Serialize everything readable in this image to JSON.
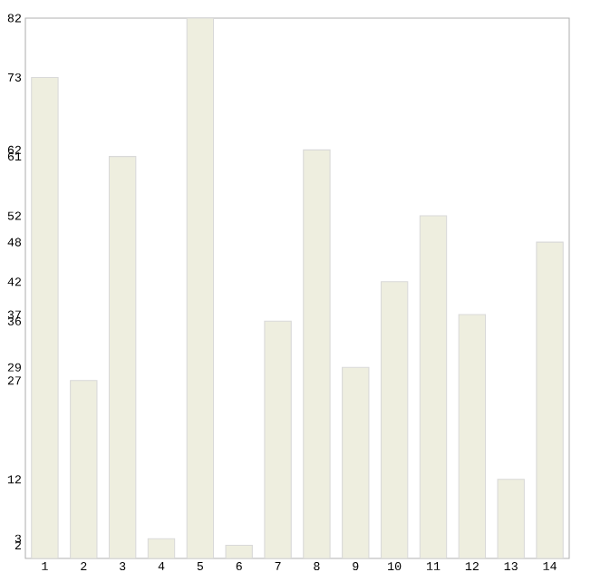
{
  "chart_data": {
    "type": "bar",
    "categories": [
      "1",
      "2",
      "3",
      "4",
      "5",
      "6",
      "7",
      "8",
      "9",
      "10",
      "11",
      "12",
      "13",
      "14"
    ],
    "values": [
      73,
      27,
      61,
      3,
      82,
      2,
      36,
      62,
      29,
      42,
      52,
      37,
      12,
      48
    ],
    "color": "#eeeedf",
    "ylim": [
      0,
      82
    ],
    "yticks": [
      2,
      3,
      12,
      27,
      29,
      36,
      37,
      42,
      48,
      52,
      61,
      62,
      73,
      82
    ],
    "grid": false
  }
}
